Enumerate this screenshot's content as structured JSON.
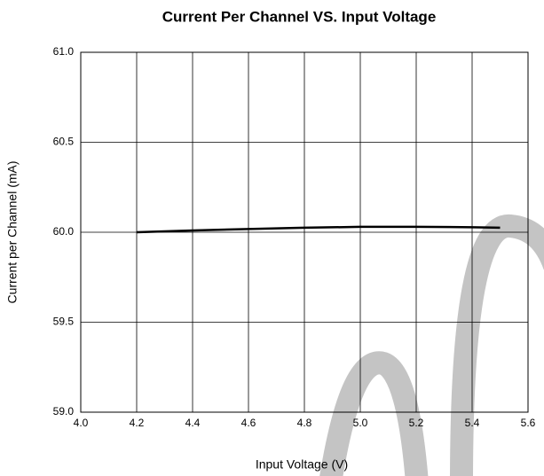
{
  "chart_data": {
    "type": "line",
    "title": "Current Per Channel VS. Input Voltage",
    "x_label": "Input Voltage (V)",
    "y_label": "Current per Channel (mA)",
    "x": [
      4.2,
      4.4,
      4.6,
      4.8,
      5.0,
      5.2,
      5.4,
      5.5
    ],
    "series": [
      {
        "color": "#000000",
        "values": [
          60.0,
          60.01,
          60.018,
          60.025,
          60.03,
          60.03,
          60.028,
          60.025
        ]
      }
    ],
    "xlim": [
      4.0,
      5.6
    ],
    "xticks": [
      {
        "value": 4.0,
        "label": "4.0"
      },
      4.2,
      4.4,
      4.6,
      4.8,
      {
        "value": 5.0,
        "label": "5.0"
      },
      5.2,
      5.4,
      5.6
    ],
    "ylim": [
      59.0,
      61.0
    ],
    "yticks": [
      {
        "value": 59.0,
        "label": "59.0"
      },
      59.5,
      {
        "value": 60.0,
        "label": "60.0"
      },
      60.5,
      {
        "value": 61.0,
        "label": "61.0"
      }
    ],
    "grid": true
  }
}
